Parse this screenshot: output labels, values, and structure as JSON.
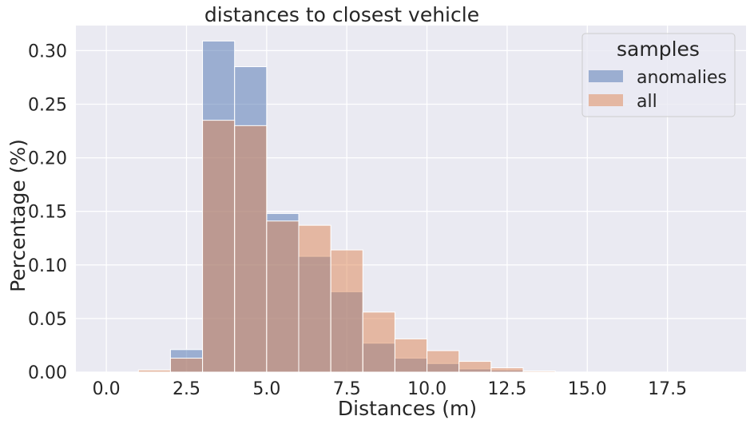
{
  "chart_data": {
    "type": "bar",
    "title": "distances to closest vehicle",
    "xlabel": "Distances (m)",
    "ylabel": "Percentage (%)",
    "xlim": [
      -0.95,
      19.95
    ],
    "ylim": [
      0,
      0.3234
    ],
    "xticks": [
      "0.0",
      "2.5",
      "5.0",
      "7.5",
      "10.0",
      "12.5",
      "15.0",
      "17.5"
    ],
    "xtick_values": [
      0,
      2.5,
      5,
      7.5,
      10,
      12.5,
      15,
      17.5
    ],
    "yticks": [
      "0.00",
      "0.05",
      "0.10",
      "0.15",
      "0.20",
      "0.25",
      "0.30"
    ],
    "ytick_values": [
      0,
      0.05,
      0.1,
      0.15,
      0.2,
      0.25,
      0.3
    ],
    "grid": true,
    "legend": {
      "title": "samples",
      "position": "top-right",
      "entries": [
        "anomalies",
        "all"
      ]
    },
    "bin_edges": [
      0,
      1,
      2,
      3,
      4,
      5,
      6,
      7,
      8,
      9,
      10,
      11,
      12,
      13,
      14,
      15,
      16,
      17,
      18,
      19
    ],
    "series": [
      {
        "name": "anomalies",
        "color": "#4c72b0",
        "values": [
          0,
          0,
          0.021,
          0.309,
          0.285,
          0.148,
          0.108,
          0.075,
          0.027,
          0.013,
          0.008,
          0.003,
          0.002,
          0,
          0,
          0,
          0,
          0,
          0
        ]
      },
      {
        "name": "all",
        "color": "#dd8452",
        "values": [
          0,
          0.002,
          0.013,
          0.235,
          0.23,
          0.141,
          0.137,
          0.114,
          0.056,
          0.031,
          0.02,
          0.01,
          0.004,
          0.001,
          0,
          0,
          0,
          0,
          0
        ]
      }
    ],
    "colors": {
      "background": "#eaeaf2",
      "grid": "#ffffff",
      "text": "#262626"
    }
  }
}
